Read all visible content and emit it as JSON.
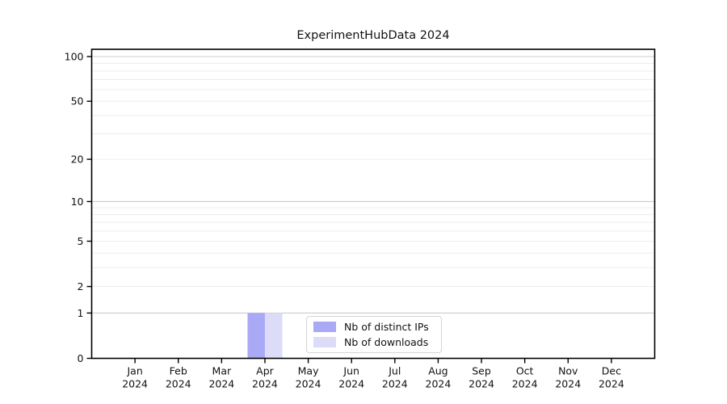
{
  "chart_data": {
    "type": "bar",
    "title": "ExperimentHubData 2024",
    "categories": [
      "Jan",
      "Feb",
      "Mar",
      "Apr",
      "May",
      "Jun",
      "Jul",
      "Aug",
      "Sep",
      "Oct",
      "Nov",
      "Dec"
    ],
    "year_label": "2024",
    "series": [
      {
        "name": "Nb of distinct IPs",
        "color": "#a9a9f6",
        "values": [
          0,
          0,
          0,
          1,
          0,
          0,
          0,
          0,
          0,
          0,
          0,
          0
        ]
      },
      {
        "name": "Nb of downloads",
        "color": "#dcdcf9",
        "values": [
          0,
          0,
          0,
          1,
          0,
          0,
          0,
          0,
          0,
          0,
          0,
          0
        ]
      }
    ],
    "xlabel": "",
    "ylabel": "",
    "yscale": "log1p",
    "yticks": [
      0,
      1,
      2,
      5,
      10,
      20,
      50,
      100
    ],
    "ylim": [
      0,
      114
    ],
    "grid": {
      "major_lines": [
        1,
        10,
        100
      ],
      "minor_lines": [
        2,
        3,
        4,
        5,
        6,
        7,
        8,
        9,
        20,
        30,
        40,
        50,
        60,
        70,
        80,
        90
      ]
    },
    "legend_position": "inside-bottom-center"
  },
  "colors": {
    "axis": "#000000",
    "major_grid": "#cccccc",
    "minor_grid": "#ededed",
    "text": "#111111",
    "legend_border": "#d5d5d5",
    "background": "#ffffff"
  }
}
